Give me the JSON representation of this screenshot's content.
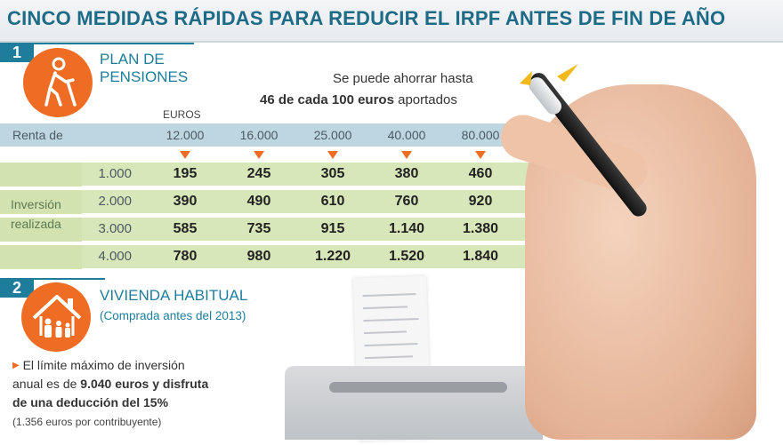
{
  "title": "CINCO MEDIDAS RÁPIDAS PARA REDUCIR EL IRPF ANTES DE FIN DE AÑO",
  "section1": {
    "number": "1",
    "title_line1": "PLAN DE",
    "title_line2": "PENSIONES",
    "saving_line1": "Se puede ahorrar hasta",
    "saving_bold": "46 de cada 100 euros",
    "saving_rest": " aportados",
    "icon": "elderly-person-icon",
    "table": {
      "unit_label": "EUROS",
      "renta_label": "Renta de",
      "renta_values": [
        "12.000",
        "16.000",
        "25.000",
        "40.000",
        "80.000"
      ],
      "inversion_label_line1": "Inversión",
      "inversion_label_line2": "realizada",
      "rows": [
        {
          "amount": "1.000",
          "values": [
            "195",
            "245",
            "305",
            "380",
            "460"
          ]
        },
        {
          "amount": "2.000",
          "values": [
            "390",
            "490",
            "610",
            "760",
            "920"
          ]
        },
        {
          "amount": "3.000",
          "values": [
            "585",
            "735",
            "915",
            "1.140",
            "1.380"
          ]
        },
        {
          "amount": "4.000",
          "values": [
            "780",
            "980",
            "1.220",
            "1.520",
            "1.840"
          ]
        }
      ]
    }
  },
  "section2": {
    "number": "2",
    "title": "VIVIENDA HABITUAL",
    "subtitle": "(Comprada antes del 2013)",
    "icon": "family-house-icon",
    "line1": "El límite máximo de inversión",
    "line2_normal": "anual es de ",
    "line2_bold": "9.040 euros y disfruta",
    "line3_bold": "de una deducción del 15%",
    "note": "(1.356 euros por contribuyente)"
  },
  "colors": {
    "accent": "#1f7d9c",
    "orange": "#ef6c24",
    "renta_row": "#bed6e2",
    "green_row": "#d8e7b9"
  }
}
